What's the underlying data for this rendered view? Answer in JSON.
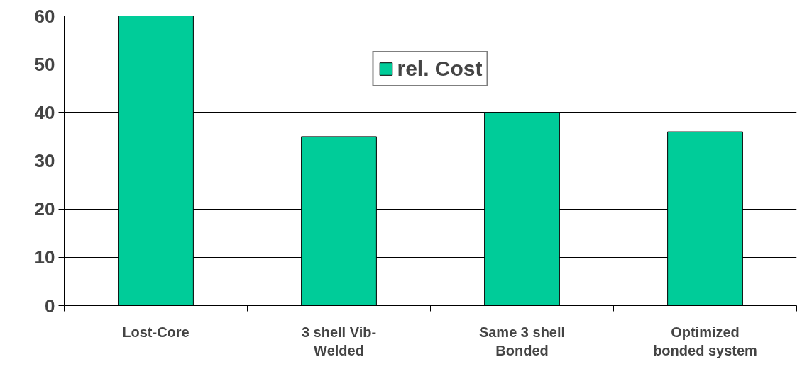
{
  "chart_data": {
    "type": "bar",
    "categories": [
      "Lost-Core",
      "3 shell Vib-\nWelded",
      "Same 3 shell\nBonded",
      "Optimized\nbonded system"
    ],
    "series": [
      {
        "name": "rel. Cost",
        "color": "#00cc99",
        "values": [
          60,
          35,
          40,
          36
        ]
      }
    ],
    "ylim": [
      0,
      60
    ],
    "yticks": [
      0,
      10,
      20,
      30,
      40,
      50,
      60
    ],
    "grid": "y",
    "legend": "top"
  }
}
